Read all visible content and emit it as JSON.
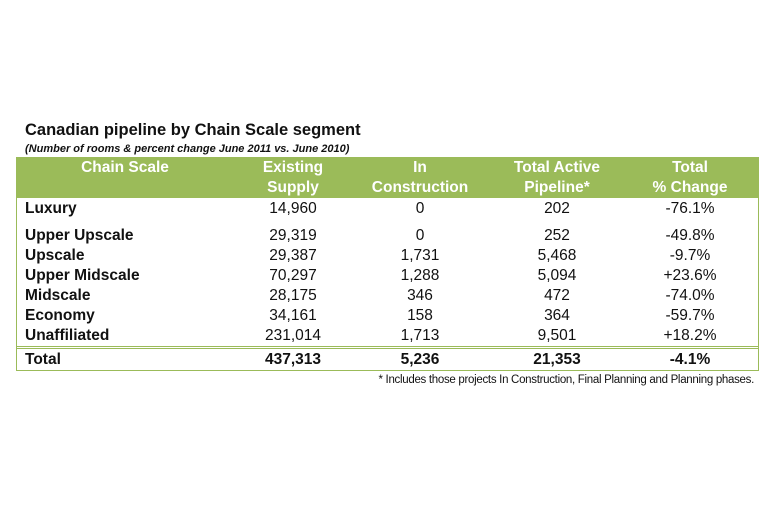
{
  "title": "Canadian pipeline by Chain Scale segment",
  "subtitle": "(Number of rooms & percent change June 2011 vs. June 2010)",
  "header_color": "#9bbb59",
  "headers": [
    [
      "Chain Scale",
      ""
    ],
    [
      "Existing",
      "Supply"
    ],
    [
      "In",
      "Construction"
    ],
    [
      "Total Active",
      "Pipeline*"
    ],
    [
      "Total",
      "% Change"
    ]
  ],
  "rows": [
    [
      "Luxury",
      "14,960",
      "0",
      "202",
      "-76.1%"
    ],
    [
      "Upper Upscale",
      "29,319",
      "0",
      "252",
      "-49.8%"
    ],
    [
      "Upscale",
      "29,387",
      "1,731",
      "5,468",
      "-9.7%"
    ],
    [
      "Upper Midscale",
      "70,297",
      "1,288",
      "5,094",
      "+23.6%"
    ],
    [
      "Midscale",
      "28,175",
      "346",
      "472",
      "-74.0%"
    ],
    [
      "Economy",
      "34,161",
      "158",
      "364",
      "-59.7%"
    ],
    [
      "Unaffiliated",
      "231,014",
      "1,713",
      "9,501",
      "+18.2%"
    ]
  ],
  "total": [
    "Total",
    "437,313",
    "5,236",
    "21,353",
    "-4.1%"
  ],
  "footnote": "* Includes those projects In Construction, Final Planning and Planning phases."
}
